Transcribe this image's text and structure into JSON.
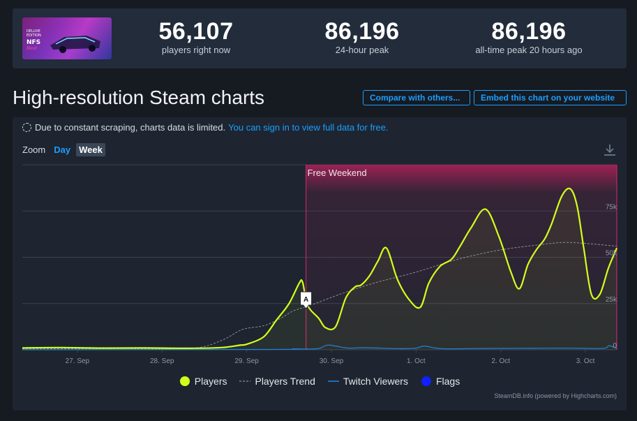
{
  "stats": [
    {
      "value": "56,107",
      "label": "players right now"
    },
    {
      "value": "86,196",
      "label": "24-hour peak"
    },
    {
      "value": "86,196",
      "label": "all-time peak 20 hours ago"
    }
  ],
  "header": {
    "title": "High-resolution Steam charts",
    "compare_label": "Compare with others...",
    "embed_label": "Embed this chart on your website"
  },
  "notice": {
    "text": "Due to constant scraping, charts data is limited.",
    "link": "You can sign in to view full data for free."
  },
  "zoom": {
    "label": "Zoom",
    "day": "Day",
    "week": "Week",
    "selected": "Week"
  },
  "legend": {
    "players": "Players",
    "trend": "Players Trend",
    "twitch": "Twitch Viewers",
    "flags": "Flags"
  },
  "credit": "SteamDB.info (powered by Highcharts.com)",
  "colors": {
    "players": "#d4ff1c",
    "trend": "#8a8f96",
    "twitch": "#1f7fd6",
    "flags": "#1020ff",
    "band": "#b3205a"
  },
  "chart_data": {
    "type": "line",
    "x_labels": [
      "27. Sep",
      "28. Sep",
      "29. Sep",
      "30. Sep",
      "1. Oct",
      "2. Oct",
      "3. Oct"
    ],
    "x_range": [
      26.35,
      33.37
    ],
    "y_ticks": [
      "0",
      "25k",
      "50k",
      "75k"
    ],
    "y_tick_values": [
      0,
      25000,
      50000,
      75000
    ],
    "ylim": [
      0,
      100000
    ],
    "plot_band": {
      "label": "Free Weekend",
      "from": 29.7,
      "to": 33.37
    },
    "flag": {
      "label": "A",
      "x": 29.7
    },
    "series": [
      {
        "name": "Players",
        "x": [
          26.35,
          26.8,
          27.3,
          27.8,
          28.3,
          28.7,
          28.92,
          29.0,
          29.2,
          29.35,
          29.5,
          29.62,
          29.66,
          29.72,
          29.85,
          29.93,
          30.05,
          30.17,
          30.28,
          30.35,
          30.45,
          30.55,
          30.65,
          30.78,
          30.92,
          31.05,
          31.15,
          31.28,
          31.42,
          31.52,
          31.65,
          31.82,
          31.98,
          32.12,
          32.22,
          32.32,
          32.42,
          32.52,
          32.6,
          32.72,
          32.82,
          32.9,
          32.98,
          33.07,
          33.17,
          33.27,
          33.37
        ],
        "values": [
          1000,
          1200,
          900,
          1000,
          800,
          1200,
          2500,
          3000,
          7000,
          16000,
          25000,
          36000,
          36500,
          24000,
          17000,
          12000,
          12500,
          28000,
          34000,
          35000,
          40000,
          48000,
          55000,
          38000,
          27000,
          23000,
          36000,
          45000,
          49000,
          56000,
          66000,
          76000,
          61000,
          42000,
          33000,
          46000,
          54000,
          60000,
          68000,
          83000,
          87000,
          78000,
          55000,
          30000,
          30000,
          44000,
          55000
        ]
      },
      {
        "name": "Players Trend",
        "x": [
          26.35,
          27.5,
          28.35,
          28.7,
          28.95,
          29.2,
          29.4,
          29.55,
          29.75,
          30.1,
          30.5,
          31.0,
          31.5,
          32.0,
          32.5,
          32.75,
          33.0,
          33.37
        ],
        "values": [
          500,
          600,
          800,
          5000,
          11000,
          13000,
          17000,
          21000,
          24000,
          30000,
          36000,
          42000,
          49000,
          54000,
          57000,
          58000,
          57500,
          56000
        ]
      },
      {
        "name": "Twitch Viewers",
        "x": [
          26.35,
          29.3,
          29.55,
          29.7,
          29.85,
          29.95,
          30.05,
          30.2,
          30.4,
          30.8,
          31.0,
          31.1,
          31.3,
          31.8,
          32.3,
          32.8,
          33.2,
          33.28,
          33.37
        ],
        "values": [
          0,
          200,
          500,
          400,
          700,
          2500,
          2000,
          900,
          1100,
          600,
          900,
          2000,
          600,
          700,
          800,
          900,
          700,
          2200,
          700
        ]
      }
    ]
  }
}
